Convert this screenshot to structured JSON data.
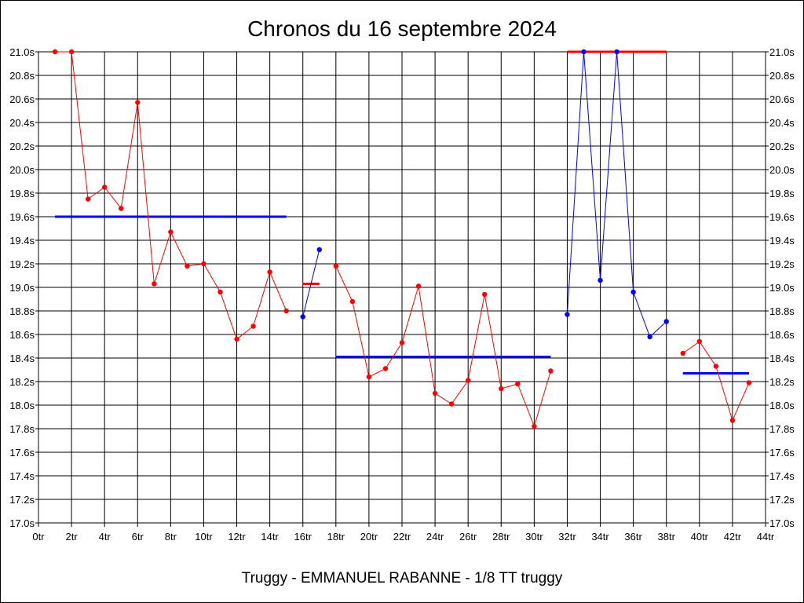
{
  "chart_data": {
    "type": "line",
    "title": "Chronos du 16 septembre 2024",
    "subtitle": "Truggy - EMMANUEL RABANNE - 1/8 TT truggy",
    "xlim": [
      0,
      44
    ],
    "ylim": [
      17.0,
      21.0
    ],
    "x_ticks": [
      0,
      2,
      4,
      6,
      8,
      10,
      12,
      14,
      16,
      18,
      20,
      22,
      24,
      26,
      28,
      30,
      32,
      34,
      36,
      38,
      40,
      42,
      44
    ],
    "x_tick_suffix": "tr",
    "y_ticks": [
      17.0,
      17.2,
      17.4,
      17.6,
      17.8,
      18.0,
      18.2,
      18.4,
      18.6,
      18.8,
      19.0,
      19.2,
      19.4,
      19.6,
      19.8,
      20.0,
      20.2,
      20.4,
      20.6,
      20.8,
      21.0
    ],
    "y_tick_suffix": "s",
    "grid": true,
    "colors": {
      "red": "#ff0000",
      "blue": "#0000ff"
    },
    "series": [
      {
        "color": "#ff0000",
        "x": [
          1,
          2,
          3,
          4,
          5,
          6,
          7,
          8,
          9,
          10,
          11,
          12,
          13,
          14,
          15
        ],
        "y": [
          21.0,
          21.0,
          19.75,
          19.85,
          19.67,
          20.57,
          19.03,
          19.47,
          19.18,
          19.2,
          18.96,
          18.56,
          18.67,
          19.13,
          18.8
        ]
      },
      {
        "color": "#0000ff",
        "x": [
          16,
          17
        ],
        "y": [
          18.75,
          19.32
        ]
      },
      {
        "color": "#ff0000",
        "x": [
          18,
          19,
          20,
          21,
          22,
          23,
          24,
          25,
          26,
          27,
          28,
          29,
          30,
          31
        ],
        "y": [
          19.18,
          18.88,
          18.24,
          18.31,
          18.53,
          19.01,
          18.1,
          18.01,
          18.21,
          18.94,
          18.14,
          18.18,
          17.82,
          18.29
        ]
      },
      {
        "color": "#0000ff",
        "x": [
          32,
          33,
          34,
          35,
          36,
          37,
          38
        ],
        "y": [
          18.77,
          21.0,
          19.06,
          21.0,
          18.96,
          18.58,
          18.71
        ]
      },
      {
        "color": "#ff0000",
        "x": [
          39,
          40,
          41,
          42,
          43
        ],
        "y": [
          18.44,
          18.54,
          18.33,
          17.87,
          18.19
        ]
      }
    ],
    "averages": [
      {
        "color": "#0000ff",
        "x": [
          1,
          15
        ],
        "y": 19.6
      },
      {
        "color": "#ff0000",
        "x": [
          16,
          17
        ],
        "y": 19.03
      },
      {
        "color": "#0000ff",
        "x": [
          18,
          31
        ],
        "y": 18.41
      },
      {
        "color": "#ff0000",
        "x": [
          32,
          38
        ],
        "y": 21.0
      },
      {
        "color": "#0000ff",
        "x": [
          39,
          43
        ],
        "y": 18.27
      }
    ]
  }
}
